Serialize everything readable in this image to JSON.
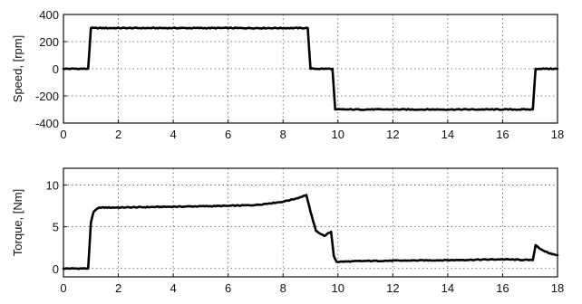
{
  "chart_data": [
    {
      "type": "line",
      "title": "",
      "xlabel": "",
      "ylabel": "Speed, [rpm]",
      "xlim": [
        0,
        18
      ],
      "ylim": [
        -400,
        400
      ],
      "xticks": [
        0,
        2,
        4,
        6,
        8,
        10,
        12,
        14,
        16,
        18
      ],
      "yticks": [
        -400,
        -200,
        0,
        200,
        400
      ],
      "grid": true,
      "series": [
        {
          "x": [
            0,
            0.9,
            1.0,
            8.9,
            9.0,
            9.8,
            9.9,
            17.1,
            17.2,
            18
          ],
          "y": [
            0,
            0,
            300,
            300,
            0,
            0,
            -300,
            -300,
            0,
            0
          ]
        }
      ]
    },
    {
      "type": "line",
      "title": "",
      "xlabel": "",
      "ylabel": "Torque, [Nm]",
      "xlim": [
        0,
        18
      ],
      "ylim": [
        -1,
        12
      ],
      "xticks": [
        0,
        2,
        4,
        6,
        8,
        10,
        12,
        14,
        16,
        18
      ],
      "yticks": [
        0,
        5,
        10
      ],
      "grid": true,
      "series": [
        {
          "x": [
            0,
            0.9,
            1.0,
            1.1,
            1.3,
            2,
            4,
            6,
            7,
            7.5,
            8,
            8.5,
            8.85,
            9.0,
            9.2,
            9.5,
            9.75,
            9.85,
            9.95,
            11,
            14,
            16,
            17.1,
            17.2,
            17.4,
            17.7,
            18
          ],
          "y": [
            0,
            0,
            5.5,
            6.8,
            7.3,
            7.3,
            7.4,
            7.5,
            7.6,
            7.8,
            8.0,
            8.4,
            8.8,
            6.8,
            4.5,
            3.9,
            4.4,
            1.5,
            0.8,
            0.9,
            1.0,
            1.1,
            1.0,
            2.8,
            2.3,
            1.8,
            1.6
          ]
        }
      ]
    }
  ]
}
